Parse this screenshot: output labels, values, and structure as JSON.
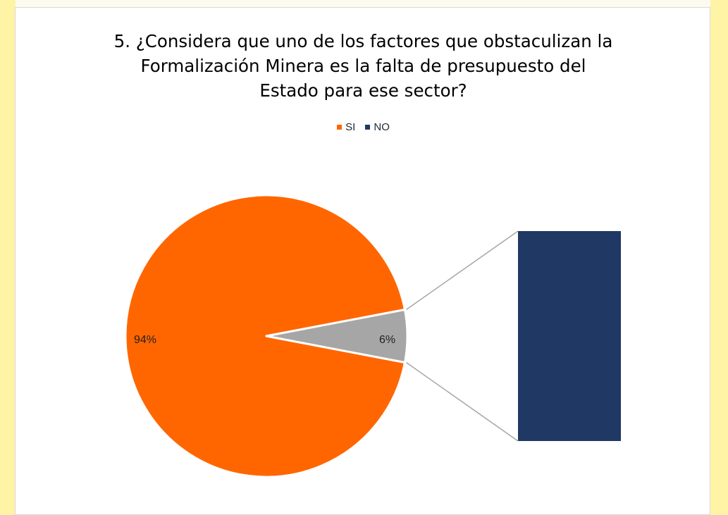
{
  "background": {
    "watermark_color": "#eaeaea",
    "stripe_color": "#fff3a6"
  },
  "chart_data": {
    "type": "pie",
    "subtype": "bar-of-pie",
    "title_lines": [
      "5. ¿Considera que uno de los factores que obstaculizan la",
      "Formalización Minera es la falta de presupuesto del",
      "Estado para ese sector?"
    ],
    "legend_position": "top",
    "categories": [
      "SI",
      "NO"
    ],
    "values": [
      94,
      6
    ],
    "unit": "%",
    "data_labels": [
      "94%",
      "6%"
    ],
    "colors": {
      "SI": "#ff6600",
      "NO": "#203864",
      "secondary_slice": "#a6a6a6",
      "connector": "#a6a6a6"
    },
    "secondary": {
      "shown_in_pie_as": "other",
      "categories": [
        "NO"
      ],
      "values": [
        6
      ]
    }
  }
}
